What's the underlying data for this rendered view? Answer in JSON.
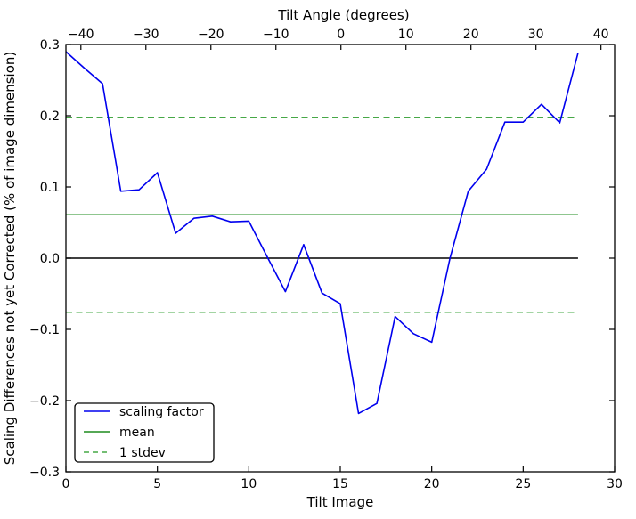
{
  "chart_data": {
    "type": "line",
    "title": "Tilt Angle (degrees)",
    "xlabel": "Tilt Image",
    "ylabel": "Scaling Differences not yet Corrected (% of image dimension)",
    "xlim": [
      0,
      30
    ],
    "ylim": [
      -0.3,
      0.3
    ],
    "grid": false,
    "x_ticks": {
      "values": [
        0,
        5,
        10,
        15,
        20,
        25,
        30
      ],
      "labels": [
        "0",
        "5",
        "10",
        "15",
        "20",
        "25",
        "30"
      ]
    },
    "y_ticks": {
      "values": [
        0.3,
        0.2,
        0.1,
        0.0,
        -0.1,
        -0.2,
        -0.3
      ],
      "labels": [
        "0.3",
        "0.2",
        "0.1",
        "0.0",
        "−0.1",
        "−0.2",
        "−0.3"
      ]
    },
    "top_axis": {
      "label": "Tilt Angle (degrees)",
      "lim": [
        -42.3,
        42.1
      ],
      "tick_values": [
        -40,
        -30,
        -20,
        -10,
        0,
        10,
        20,
        30,
        40
      ],
      "tick_labels": [
        "−40",
        "−30",
        "−20",
        "−10",
        "0",
        "10",
        "20",
        "30",
        "40"
      ]
    },
    "series": [
      {
        "name": "scaling factor",
        "color": "#0000ee",
        "line_style": "solid",
        "x": [
          0,
          1,
          2,
          3,
          4,
          5,
          6,
          7,
          8,
          9,
          10,
          11,
          12,
          13,
          14,
          15,
          16,
          17,
          18,
          19,
          20,
          21,
          22,
          23,
          24,
          25,
          26,
          27,
          28
        ],
        "y": [
          0.29,
          0.267,
          0.245,
          0.094,
          0.096,
          0.12,
          0.035,
          0.056,
          0.059,
          0.051,
          0.052,
          0.002,
          -0.047,
          0.019,
          -0.049,
          -0.064,
          -0.218,
          -0.204,
          -0.082,
          -0.106,
          -0.118,
          0.0,
          0.094,
          0.125,
          0.191,
          0.191,
          0.216,
          0.19,
          0.288
        ]
      }
    ],
    "reference_lines": [
      {
        "name": "zero",
        "y": 0.0,
        "color": "#000000",
        "line_style": "solid",
        "x_range": [
          0,
          28
        ]
      },
      {
        "name": "mean",
        "y": 0.061,
        "color": "#1f8c1f",
        "line_style": "solid",
        "x_range": [
          0,
          28
        ]
      },
      {
        "name": "1 stdev",
        "y": 0.198,
        "color": "#46a846",
        "line_style": "dashed",
        "x_range": [
          0,
          28
        ]
      },
      {
        "name": "1 stdev",
        "y": -0.076,
        "color": "#46a846",
        "line_style": "dashed",
        "x_range": [
          0,
          28
        ]
      }
    ],
    "legend": {
      "location": "lower left",
      "entries": [
        {
          "label": "scaling factor",
          "color": "#0000ee",
          "style": "solid"
        },
        {
          "label": "mean",
          "color": "#1f8c1f",
          "style": "solid"
        },
        {
          "label": "1 stdev",
          "color": "#46a846",
          "style": "dashed"
        }
      ]
    }
  }
}
